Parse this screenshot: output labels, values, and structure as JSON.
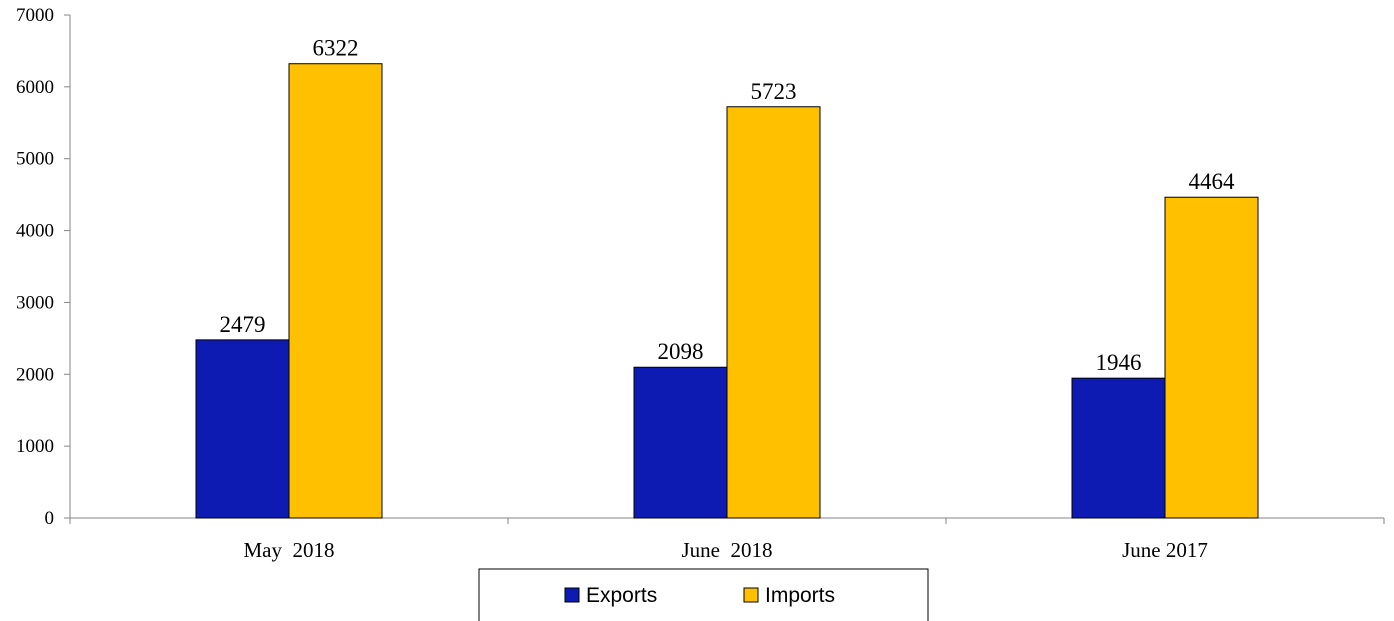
{
  "chart_data": {
    "type": "bar",
    "title": "",
    "xlabel": "",
    "ylabel": "",
    "categories": [
      "May  2018",
      "June  2018",
      "June 2017"
    ],
    "series": [
      {
        "name": "Exports",
        "values": [
          2479,
          2098,
          1946
        ],
        "color": "#0E1BB3"
      },
      {
        "name": "Imports",
        "values": [
          6322,
          5723,
          4464
        ],
        "color": "#FFC000"
      }
    ],
    "ylim": [
      0,
      7000
    ],
    "yticks": [
      0,
      1000,
      2000,
      3000,
      4000,
      5000,
      6000,
      7000
    ],
    "grid": false,
    "data_labels": true,
    "legend_position": "bottom"
  }
}
